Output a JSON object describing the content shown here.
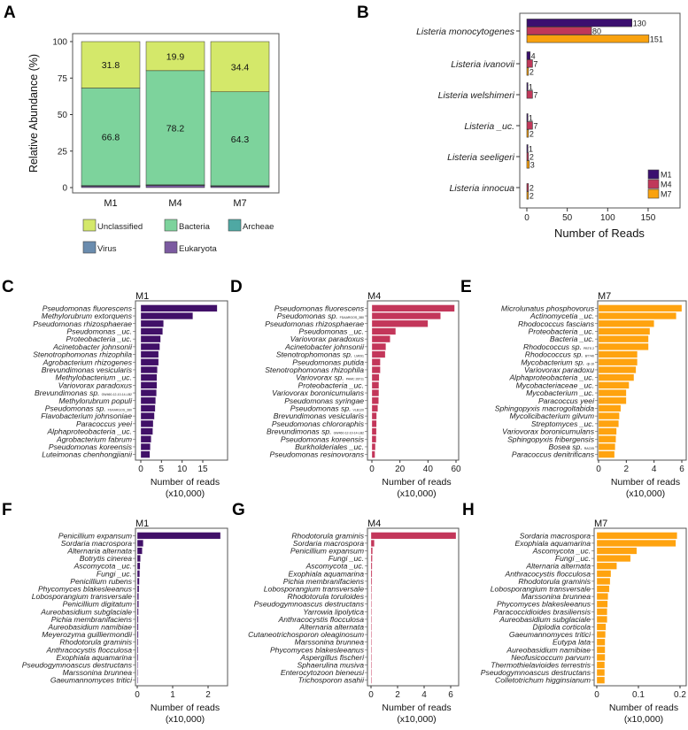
{
  "chart_data": [
    {
      "panel": "A",
      "type": "bar",
      "stacked": true,
      "ylabel": "Relative Abundance (%)",
      "ylim": [
        0,
        100
      ],
      "yticks": [
        "0",
        "25",
        "50",
        "75",
        "100"
      ],
      "categories": [
        "M1",
        "M4",
        "M7"
      ],
      "series": [
        {
          "name": "Eukaryota",
          "color": "#7b5aa0",
          "values": [
            1.0,
            1.5,
            0.8
          ]
        },
        {
          "name": "Virus",
          "color": "#6a8cae",
          "values": [
            0.3,
            0.3,
            0.4
          ]
        },
        {
          "name": "Archeae",
          "color": "#4fa8a3",
          "values": [
            0.1,
            0.1,
            0.1
          ]
        },
        {
          "name": "Bacteria",
          "color": "#7dd39c",
          "values": [
            66.8,
            78.2,
            64.3
          ],
          "labels": [
            "66.8",
            "78.2",
            "64.3"
          ]
        },
        {
          "name": "Unclassified",
          "color": "#d4e86a",
          "values": [
            31.8,
            19.9,
            34.4
          ],
          "labels": [
            "31.8",
            "19.9",
            "34.4"
          ]
        }
      ],
      "legend": [
        "Unclassified",
        "Bacteria",
        "Archeae",
        "Virus",
        "Eukaryota"
      ]
    },
    {
      "panel": "B",
      "type": "bar",
      "orientation": "horizontal",
      "xlabel": "Number of Reads",
      "xlim": [
        0,
        175
      ],
      "xticks": [
        "0",
        "50",
        "100",
        "150"
      ],
      "categories": [
        "Listeria monocytogenes",
        "Listeria ivanovii",
        "Listeria welshimeri",
        "Listeria _uc.",
        "Listeria seeligeri",
        "Listeria innocua"
      ],
      "series": [
        {
          "name": "M1",
          "color": "#3b0f6f",
          "values": [
            130,
            4,
            1,
            1,
            1,
            null
          ]
        },
        {
          "name": "M4",
          "color": "#c0385a",
          "values": [
            80,
            7,
            7,
            7,
            2,
            2
          ]
        },
        {
          "name": "M7",
          "color": "#f9a20f",
          "values": [
            151,
            2,
            null,
            2,
            3,
            2
          ]
        }
      ],
      "legend_position": "bottom-right"
    },
    {
      "panel": "C",
      "title": "M1",
      "type": "bar",
      "orientation": "horizontal",
      "color": "#411068",
      "xlabel": "Number of reads",
      "xlabel2": "(x10,000)",
      "xticks": [
        "0",
        "5",
        "10",
        "15"
      ],
      "categories": [
        [
          "Pseudomonas fluorescens",
          ""
        ],
        [
          "Methylorubrum extorquens",
          ""
        ],
        [
          "Pseudomonas rhizosphaerae",
          ""
        ],
        [
          "Pseudomonas _uc.",
          ""
        ],
        [
          "Proteobacteria _uc.",
          ""
        ],
        [
          "Acinetobacter johnsonii",
          ""
        ],
        [
          "Stenotrophomonas rhizophila",
          ""
        ],
        [
          "Agrobacterium rhizogenes",
          ""
        ],
        [
          "Brevundimonas vesicularis",
          ""
        ],
        [
          "Methylobacterium _uc.",
          ""
        ],
        [
          "Variovorax paradoxus",
          ""
        ],
        [
          "Brevundimonas sp.",
          "GW460-12-10-14-LB2"
        ],
        [
          "Methylorubrum populi",
          ""
        ],
        [
          "Pseudomonas sp.",
          "FDAARGOS_380"
        ],
        [
          "Flavobacterium johnsoniae",
          ""
        ],
        [
          "Paracoccus yeei",
          ""
        ],
        [
          "Alphaproteobacteria _uc.",
          ""
        ],
        [
          "Agrobacterium fabrum",
          ""
        ],
        [
          "Pseudomonas koreensis",
          ""
        ],
        [
          "Luteimonas chenhongjianii",
          ""
        ]
      ],
      "values": [
        18.5,
        12.6,
        5.5,
        5.3,
        4.8,
        4.6,
        4.3,
        4.3,
        4.0,
        3.9,
        3.9,
        3.8,
        3.6,
        3.5,
        3.3,
        3.0,
        2.9,
        2.5,
        2.3,
        2.2
      ]
    },
    {
      "panel": "D",
      "title": "M4",
      "type": "bar",
      "orientation": "horizontal",
      "color": "#c3365a",
      "xlabel": "Number of reads",
      "xlabel2": "(x10,000)",
      "xticks": [
        "0",
        "20",
        "40",
        "60"
      ],
      "categories": [
        [
          "Pseudomonas fluorescens",
          ""
        ],
        [
          "Pseudomonas sp.",
          "FDAARGOS_380"
        ],
        [
          "Pseudomonas rhizosphaerae",
          ""
        ],
        [
          "Pseudomonas _uc.",
          ""
        ],
        [
          "Variovorax paradoxus",
          ""
        ],
        [
          "Acinetobacter johnsonii",
          ""
        ],
        [
          "Stenotrophomonas sp.",
          "LM091"
        ],
        [
          "Pseudomonas putida",
          ""
        ],
        [
          "Stenotrophomonas rhizophila",
          ""
        ],
        [
          "Variovorax sp.",
          "PAMC 28711"
        ],
        [
          "Proteobacteria _uc.",
          ""
        ],
        [
          "Variovorax boronicumulans",
          ""
        ],
        [
          "Pseudomonas syringae",
          ""
        ],
        [
          "Pseudomonas sp.",
          "VLB120"
        ],
        [
          "Brevundimonas vesicularis",
          ""
        ],
        [
          "Pseudomonas chlororaphis",
          ""
        ],
        [
          "Brevundimonas sp.",
          "GW460-12-10-14-LB2"
        ],
        [
          "Pseudomonas koreensis",
          ""
        ],
        [
          "Burkholderiales _uc.",
          ""
        ],
        [
          "Pseudomonas resinovorans",
          ""
        ]
      ],
      "values": [
        59,
        49,
        40,
        17,
        13,
        10,
        9.5,
        6,
        6,
        5.2,
        5,
        5,
        4.8,
        4.2,
        3.4,
        3.3,
        3.2,
        3.1,
        2.5,
        2.2
      ]
    },
    {
      "panel": "E",
      "title": "M7",
      "type": "bar",
      "orientation": "horizontal",
      "color": "#ffa30f",
      "xlabel": "Number of reads",
      "xlabel2": "(x10,000)",
      "xticks": [
        "0",
        "2",
        "4",
        "6"
      ],
      "categories": [
        [
          "Microlunatus phosphovorus",
          ""
        ],
        [
          "Actinomycetia _uc.",
          ""
        ],
        [
          "Rhodococcus fascians",
          ""
        ],
        [
          "Proteobacteria _uc.",
          ""
        ],
        [
          "Bacteria _uc.",
          ""
        ],
        [
          "Rhodococcus sp.",
          "PBTS 2"
        ],
        [
          "Rhodococcus sp.",
          "BT740"
        ],
        [
          "Mycobacterium sp.",
          "djl-10"
        ],
        [
          "Variovorax paradoxu",
          ""
        ],
        [
          "Alphaproteobacteria _uc.",
          ""
        ],
        [
          "Mycobacteriaceae _uc.",
          ""
        ],
        [
          "Mycobacterium _uc.",
          ""
        ],
        [
          "Paracoccus yeei",
          ""
        ],
        [
          "Sphingopyxis macrogoltabida",
          ""
        ],
        [
          "Mycolicibacterium gilvum",
          ""
        ],
        [
          "Streptomyces _uc.",
          ""
        ],
        [
          "Variovorax boronicumulans",
          ""
        ],
        [
          "Sphingopyxis fribergensis",
          ""
        ],
        [
          "Bosea sp.",
          "RAC05"
        ],
        [
          "Paracoccus denitrificans",
          ""
        ]
      ],
      "values": [
        6.0,
        5.6,
        4.0,
        3.7,
        3.6,
        3.6,
        2.8,
        2.8,
        2.7,
        2.55,
        2.2,
        2.0,
        2.0,
        1.6,
        1.5,
        1.45,
        1.3,
        1.25,
        1.2,
        1.15
      ]
    },
    {
      "panel": "F",
      "title": "M1",
      "type": "bar",
      "orientation": "horizontal",
      "color": "#411068",
      "xlabel": "Number of reads",
      "xlabel2": "(x10,000)",
      "xticks": [
        "0",
        "1",
        "2"
      ],
      "categories": [
        [
          "Penicillium expansum",
          ""
        ],
        [
          "Sordaria macrospora",
          ""
        ],
        [
          "Alternaria alternata",
          ""
        ],
        [
          "Botrytis cinerea",
          ""
        ],
        [
          "Ascomycota _uc.",
          ""
        ],
        [
          "Fungi _uc.",
          ""
        ],
        [
          "Penicillium rubens",
          ""
        ],
        [
          "Phycomyces blakesleeanus",
          ""
        ],
        [
          "Lobosporangium transversale",
          ""
        ],
        [
          "Penicillium digitatum",
          ""
        ],
        [
          "Aureobasidium subglaciale",
          ""
        ],
        [
          "Pichia membranifaciens",
          ""
        ],
        [
          "Aureobasidium namibiae",
          ""
        ],
        [
          "Meyerozyma guilliermondii",
          ""
        ],
        [
          "Rhodotorula graminis",
          ""
        ],
        [
          "Anthracocystis flocculosa",
          ""
        ],
        [
          "Exophiala aquamarina",
          ""
        ],
        [
          "Pseudogymnoascus destructans",
          ""
        ],
        [
          "Marssonina brunnea",
          ""
        ],
        [
          "Gaeumannomyces tritici",
          ""
        ]
      ],
      "values": [
        2.35,
        0.17,
        0.14,
        0.09,
        0.08,
        0.07,
        0.06,
        0.05,
        0.04,
        0.04,
        0.035,
        0.03,
        0.03,
        0.03,
        0.025,
        0.025,
        0.025,
        0.02,
        0.02,
        0.02
      ]
    },
    {
      "panel": "G",
      "title": "M4",
      "type": "bar",
      "orientation": "horizontal",
      "color": "#c3365a",
      "xlabel": "Number of reads",
      "xlabel2": "(x10,000)",
      "xticks": [
        "0",
        "2",
        "4",
        "6"
      ],
      "categories": [
        [
          "Rhodotorula graminis",
          ""
        ],
        [
          "Sordaria macrospora",
          ""
        ],
        [
          "Penicillium expansum",
          ""
        ],
        [
          "Fungi _uc.",
          ""
        ],
        [
          "Ascomycota _uc.",
          ""
        ],
        [
          "Exophiala aquamarina",
          ""
        ],
        [
          "Pichia membranifaciens",
          ""
        ],
        [
          "Lobosporangium transversale",
          ""
        ],
        [
          "Rhodotorula toruloides",
          ""
        ],
        [
          "Pseudogymnoascus destructans",
          ""
        ],
        [
          "Yarrowia lipolytica",
          ""
        ],
        [
          "Anthracocystis flocculosa",
          ""
        ],
        [
          "Alternaria alternata",
          ""
        ],
        [
          "Cutaneotrichosporon oleaginosum",
          ""
        ],
        [
          "Marssonina brunnea",
          ""
        ],
        [
          "Phycomyces blakesleeanus",
          ""
        ],
        [
          "Aspergillus fischeri",
          ""
        ],
        [
          "Sphaerulina musiva",
          ""
        ],
        [
          "Enterocytozoon bieneusi",
          ""
        ],
        [
          "Trichosporon asahii",
          ""
        ]
      ],
      "values": [
        6.4,
        0.25,
        0.12,
        0.1,
        0.09,
        0.08,
        0.07,
        0.06,
        0.05,
        0.05,
        0.04,
        0.04,
        0.04,
        0.03,
        0.03,
        0.03,
        0.03,
        0.03,
        0.02,
        0.02
      ]
    },
    {
      "panel": "H",
      "title": "M7",
      "type": "bar",
      "orientation": "horizontal",
      "color": "#ffa30f",
      "xlabel": "Number of reads",
      "xlabel2": "(x10,000)",
      "xticks": [
        "0",
        "0.1",
        "0.2"
      ],
      "categories": [
        [
          "Sordaria macrospora",
          ""
        ],
        [
          "Exophiala aquamarina",
          ""
        ],
        [
          "Ascomycota _uc.",
          ""
        ],
        [
          "Fungi _uc.",
          ""
        ],
        [
          "Alternaria alternata",
          ""
        ],
        [
          "Anthracocystis flocculosa",
          ""
        ],
        [
          "Rhodotorula graminis",
          ""
        ],
        [
          "Lobosporangium transversale",
          ""
        ],
        [
          "Marssonina brunnea",
          ""
        ],
        [
          "Phycomyces blakesleeanus",
          ""
        ],
        [
          "Paracoccidioides brasiliensis",
          ""
        ],
        [
          "Aureobasidium subglaciale",
          ""
        ],
        [
          "Diplodia corticola",
          ""
        ],
        [
          "Gaeumannomyces tritici",
          ""
        ],
        [
          "Eutypa lata",
          ""
        ],
        [
          "Aureobasidium namibiae",
          ""
        ],
        [
          "Neofusicoccum parvum",
          ""
        ],
        [
          "Thermothielavioides terrestris",
          ""
        ],
        [
          "Pseudogymnoascus destructans",
          ""
        ],
        [
          "Colletotrichum higginsianum",
          ""
        ]
      ],
      "values": [
        0.193,
        0.19,
        0.096,
        0.081,
        0.048,
        0.034,
        0.032,
        0.03,
        0.027,
        0.026,
        0.025,
        0.025,
        0.022,
        0.021,
        0.02,
        0.02,
        0.02,
        0.019,
        0.019,
        0.019
      ]
    }
  ]
}
